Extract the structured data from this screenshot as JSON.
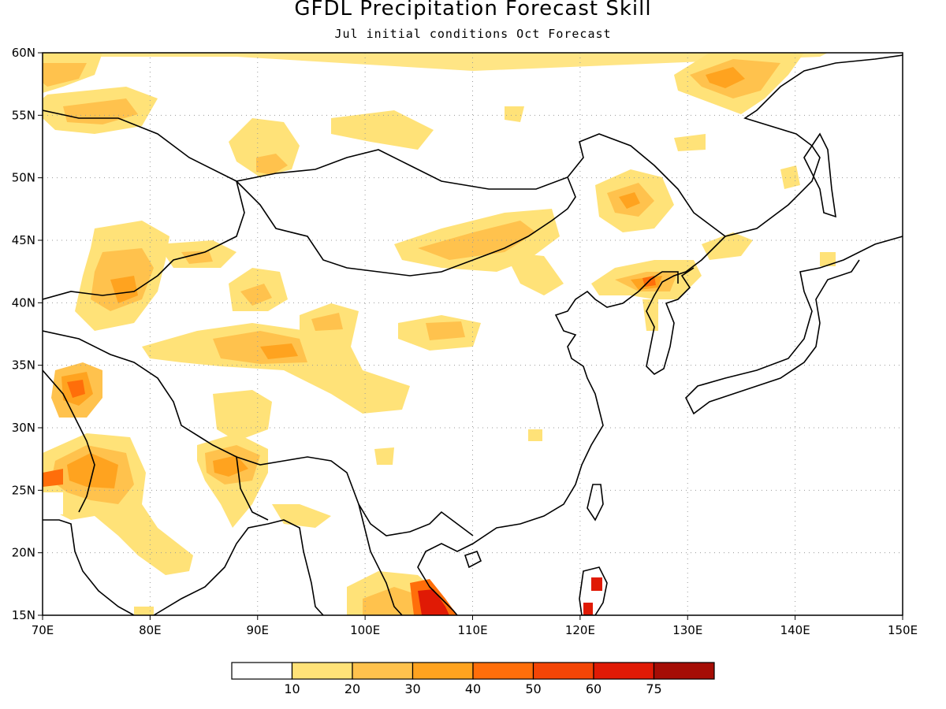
{
  "title": "GFDL Precipitation Forecast Skill",
  "subtitle": "Jul initial conditions  Oct Forecast",
  "map": {
    "lon_range": [
      70,
      150
    ],
    "lat_range": [
      15,
      60
    ],
    "grid": "dotted",
    "lon_ticks": [
      "70E",
      "80E",
      "90E",
      "100E",
      "110E",
      "120E",
      "130E",
      "140E",
      "150E"
    ],
    "lat_ticks": [
      "15N",
      "20N",
      "25N",
      "30N",
      "35N",
      "40N",
      "45N",
      "50N",
      "55N",
      "60N"
    ]
  },
  "legend": {
    "colors": [
      "#ffffff",
      "#ffe278",
      "#ffc24d",
      "#ffa31f",
      "#ff6e0a",
      "#f44506",
      "#e01a05",
      "#a50d05"
    ],
    "labels": [
      "10",
      "20",
      "30",
      "40",
      "50",
      "60",
      "75"
    ]
  }
}
